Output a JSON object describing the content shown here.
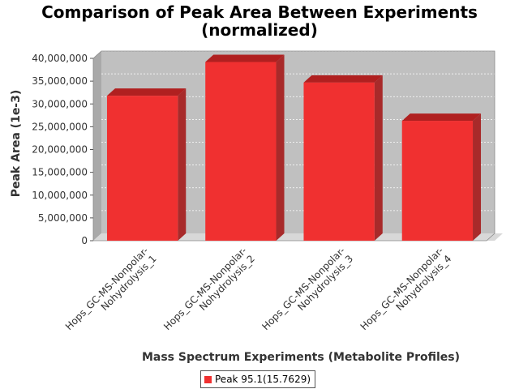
{
  "chart_data": {
    "type": "bar",
    "title_lines": [
      "Comparison of Peak Area Between Experiments",
      "(normalized)"
    ],
    "xlabel": "Mass Spectrum Experiments (Metabolite Profiles)",
    "ylabel": "Peak Area (1e-3)",
    "ylim": [
      0,
      40000000
    ],
    "yticks": [
      0,
      5000000,
      10000000,
      15000000,
      20000000,
      25000000,
      30000000,
      35000000,
      40000000
    ],
    "ytick_labels": [
      "0",
      "5,000,000",
      "10,000,000",
      "15,000,000",
      "20,000,000",
      "25,000,000",
      "30,000,000",
      "35,000,000",
      "40,000,000"
    ],
    "categories": [
      [
        "Hops_GC-MS-Nonpolar-",
        "Nohydrolysis_1"
      ],
      [
        "Hops_GC-MS-Nonpolar-",
        "Nohydrolysis_2"
      ],
      [
        "Hops_GC-MS-Nonpolar-",
        "Nohydrolysis_3"
      ],
      [
        "Hops_GC-MS-Nonpolar-",
        "Nohydrolysis_4"
      ]
    ],
    "series": [
      {
        "name": "Peak 95.1(15.7629)",
        "color": "#f03030",
        "values": [
          31800000,
          39200000,
          34700000,
          26300000
        ]
      }
    ],
    "grid": true,
    "legend_position": "bottom"
  }
}
